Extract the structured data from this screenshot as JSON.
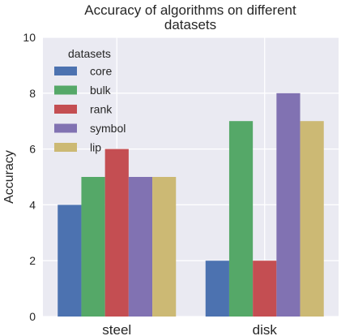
{
  "chart_data": {
    "type": "bar",
    "title_lines": [
      "Accuracy of algorithms on different",
      "datasets"
    ],
    "xlabel": "",
    "ylabel": "Accuracy",
    "categories": [
      "steel",
      "disk"
    ],
    "series": [
      {
        "name": "core",
        "values": [
          4,
          2
        ],
        "color": "#4C72B0"
      },
      {
        "name": "bulk",
        "values": [
          5,
          7
        ],
        "color": "#55A868"
      },
      {
        "name": "rank",
        "values": [
          6,
          2
        ],
        "color": "#C44E52"
      },
      {
        "name": "symbol",
        "values": [
          5,
          8
        ],
        "color": "#8172B2"
      },
      {
        "name": "lip",
        "values": [
          5,
          7
        ],
        "color": "#CCB974"
      }
    ],
    "ylim": [
      0,
      10
    ],
    "yticks": [
      0,
      2,
      4,
      6,
      8,
      10
    ],
    "grid": true,
    "legend": {
      "title": "datasets",
      "placement": "top-left"
    },
    "style": {
      "plot_background": "#EAEAF2",
      "grid_color": "#ffffff"
    }
  }
}
